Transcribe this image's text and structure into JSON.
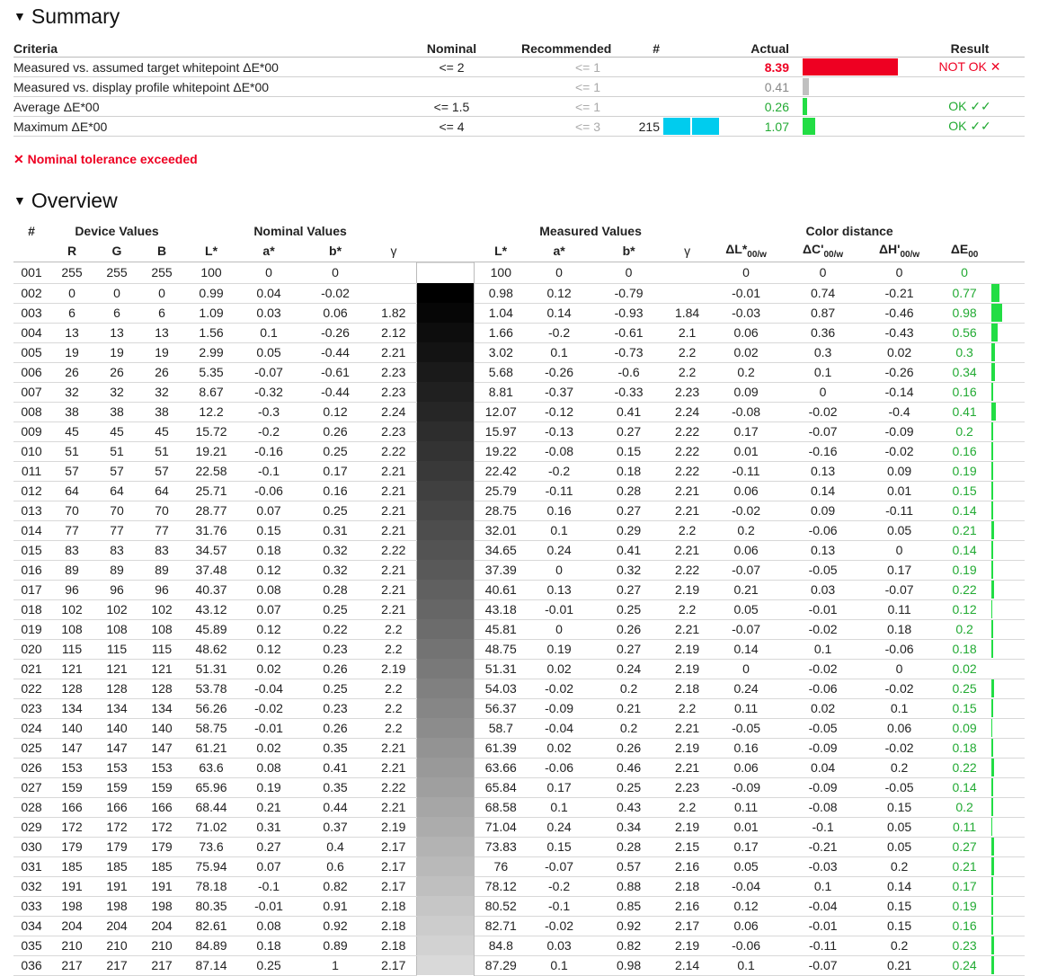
{
  "summary": {
    "title": "Summary",
    "headers": {
      "criteria": "Criteria",
      "nominal": "Nominal",
      "recommended": "Recommended",
      "count": "#",
      "actual": "Actual",
      "result": "Result"
    },
    "rows": [
      {
        "criteria": "Measured vs. assumed target whitepoint ΔE*00",
        "nominal": "<= 2",
        "recommended": "<= 1",
        "count": "",
        "actual": "8.39",
        "actual_color": "#ee0022",
        "bar_fraction": 0.94,
        "bar_color": "#ee0022",
        "result": "NOT OK ✕",
        "result_color": "#ee0022"
      },
      {
        "criteria": "Measured vs. display profile whitepoint ΔE*00",
        "nominal": "",
        "recommended": "<= 1",
        "count": "",
        "actual": "0.41",
        "actual_color": "#888888",
        "bar_fraction": 0.06,
        "bar_color": "#c0c0c0",
        "result": "",
        "result_color": "#22aa33"
      },
      {
        "criteria": "Average ΔE*00",
        "nominal": "<= 1.5",
        "recommended": "<= 1",
        "count": "",
        "actual": "0.26",
        "actual_color": "#22aa33",
        "bar_fraction": 0.04,
        "bar_color": "#22dd44",
        "result": "OK ✓✓",
        "result_color": "#22aa33"
      },
      {
        "criteria": "Maximum ΔE*00",
        "nominal": "<= 4",
        "recommended": "<= 3",
        "count": "215",
        "actual": "1.07",
        "actual_color": "#22aa33",
        "bar_fraction": 0.12,
        "bar_color": "#22dd44",
        "result": "OK ✓✓",
        "result_color": "#22aa33"
      }
    ],
    "warning": "✕ Nominal tolerance exceeded"
  },
  "overview": {
    "title": "Overview",
    "group_headers": {
      "num": "#",
      "device": "Device Values",
      "nominal": "Nominal Values",
      "measured": "Measured Values",
      "distance": "Color distance"
    },
    "col_headers": {
      "r": "R",
      "g": "G",
      "b": "B",
      "L": "L*",
      "a": "a*",
      "bstar": "b*",
      "gamma": "γ",
      "dL": "ΔL*",
      "dC": "ΔC'",
      "dH": "ΔH'",
      "dE": "ΔE",
      "sub_w": "00/w",
      "sub": "00"
    },
    "rows": [
      [
        "001",
        "255",
        "255",
        "255",
        "100",
        "0",
        "0",
        "",
        "100",
        "0",
        "0",
        "",
        "0",
        "0",
        "0",
        "0"
      ],
      [
        "002",
        "0",
        "0",
        "0",
        "0.99",
        "0.04",
        "-0.02",
        "",
        "0.98",
        "0.12",
        "-0.79",
        "",
        "-0.01",
        "0.74",
        "-0.21",
        "0.77"
      ],
      [
        "003",
        "6",
        "6",
        "6",
        "1.09",
        "0.03",
        "0.06",
        "1.82",
        "1.04",
        "0.14",
        "-0.93",
        "1.84",
        "-0.03",
        "0.87",
        "-0.46",
        "0.98"
      ],
      [
        "004",
        "13",
        "13",
        "13",
        "1.56",
        "0.1",
        "-0.26",
        "2.12",
        "1.66",
        "-0.2",
        "-0.61",
        "2.1",
        "0.06",
        "0.36",
        "-0.43",
        "0.56"
      ],
      [
        "005",
        "19",
        "19",
        "19",
        "2.99",
        "0.05",
        "-0.44",
        "2.21",
        "3.02",
        "0.1",
        "-0.73",
        "2.2",
        "0.02",
        "0.3",
        "0.02",
        "0.3"
      ],
      [
        "006",
        "26",
        "26",
        "26",
        "5.35",
        "-0.07",
        "-0.61",
        "2.23",
        "5.68",
        "-0.26",
        "-0.6",
        "2.2",
        "0.2",
        "0.1",
        "-0.26",
        "0.34"
      ],
      [
        "007",
        "32",
        "32",
        "32",
        "8.67",
        "-0.32",
        "-0.44",
        "2.23",
        "8.81",
        "-0.37",
        "-0.33",
        "2.23",
        "0.09",
        "0",
        "-0.14",
        "0.16"
      ],
      [
        "008",
        "38",
        "38",
        "38",
        "12.2",
        "-0.3",
        "0.12",
        "2.24",
        "12.07",
        "-0.12",
        "0.41",
        "2.24",
        "-0.08",
        "-0.02",
        "-0.4",
        "0.41"
      ],
      [
        "009",
        "45",
        "45",
        "45",
        "15.72",
        "-0.2",
        "0.26",
        "2.23",
        "15.97",
        "-0.13",
        "0.27",
        "2.22",
        "0.17",
        "-0.07",
        "-0.09",
        "0.2"
      ],
      [
        "010",
        "51",
        "51",
        "51",
        "19.21",
        "-0.16",
        "0.25",
        "2.22",
        "19.22",
        "-0.08",
        "0.15",
        "2.22",
        "0.01",
        "-0.16",
        "-0.02",
        "0.16"
      ],
      [
        "011",
        "57",
        "57",
        "57",
        "22.58",
        "-0.1",
        "0.17",
        "2.21",
        "22.42",
        "-0.2",
        "0.18",
        "2.22",
        "-0.11",
        "0.13",
        "0.09",
        "0.19"
      ],
      [
        "012",
        "64",
        "64",
        "64",
        "25.71",
        "-0.06",
        "0.16",
        "2.21",
        "25.79",
        "-0.11",
        "0.28",
        "2.21",
        "0.06",
        "0.14",
        "0.01",
        "0.15"
      ],
      [
        "013",
        "70",
        "70",
        "70",
        "28.77",
        "0.07",
        "0.25",
        "2.21",
        "28.75",
        "0.16",
        "0.27",
        "2.21",
        "-0.02",
        "0.09",
        "-0.11",
        "0.14"
      ],
      [
        "014",
        "77",
        "77",
        "77",
        "31.76",
        "0.15",
        "0.31",
        "2.21",
        "32.01",
        "0.1",
        "0.29",
        "2.2",
        "0.2",
        "-0.06",
        "0.05",
        "0.21"
      ],
      [
        "015",
        "83",
        "83",
        "83",
        "34.57",
        "0.18",
        "0.32",
        "2.22",
        "34.65",
        "0.24",
        "0.41",
        "2.21",
        "0.06",
        "0.13",
        "0",
        "0.14"
      ],
      [
        "016",
        "89",
        "89",
        "89",
        "37.48",
        "0.12",
        "0.32",
        "2.21",
        "37.39",
        "0",
        "0.32",
        "2.22",
        "-0.07",
        "-0.05",
        "0.17",
        "0.19"
      ],
      [
        "017",
        "96",
        "96",
        "96",
        "40.37",
        "0.08",
        "0.28",
        "2.21",
        "40.61",
        "0.13",
        "0.27",
        "2.19",
        "0.21",
        "0.03",
        "-0.07",
        "0.22"
      ],
      [
        "018",
        "102",
        "102",
        "102",
        "43.12",
        "0.07",
        "0.25",
        "2.21",
        "43.18",
        "-0.01",
        "0.25",
        "2.2",
        "0.05",
        "-0.01",
        "0.11",
        "0.12"
      ],
      [
        "019",
        "108",
        "108",
        "108",
        "45.89",
        "0.12",
        "0.22",
        "2.2",
        "45.81",
        "0",
        "0.26",
        "2.21",
        "-0.07",
        "-0.02",
        "0.18",
        "0.2"
      ],
      [
        "020",
        "115",
        "115",
        "115",
        "48.62",
        "0.12",
        "0.23",
        "2.2",
        "48.75",
        "0.19",
        "0.27",
        "2.19",
        "0.14",
        "0.1",
        "-0.06",
        "0.18"
      ],
      [
        "021",
        "121",
        "121",
        "121",
        "51.31",
        "0.02",
        "0.26",
        "2.19",
        "51.31",
        "0.02",
        "0.24",
        "2.19",
        "0",
        "-0.02",
        "0",
        "0.02"
      ],
      [
        "022",
        "128",
        "128",
        "128",
        "53.78",
        "-0.04",
        "0.25",
        "2.2",
        "54.03",
        "-0.02",
        "0.2",
        "2.18",
        "0.24",
        "-0.06",
        "-0.02",
        "0.25"
      ],
      [
        "023",
        "134",
        "134",
        "134",
        "56.26",
        "-0.02",
        "0.23",
        "2.2",
        "56.37",
        "-0.09",
        "0.21",
        "2.2",
        "0.11",
        "0.02",
        "0.1",
        "0.15"
      ],
      [
        "024",
        "140",
        "140",
        "140",
        "58.75",
        "-0.01",
        "0.26",
        "2.2",
        "58.7",
        "-0.04",
        "0.2",
        "2.21",
        "-0.05",
        "-0.05",
        "0.06",
        "0.09"
      ],
      [
        "025",
        "147",
        "147",
        "147",
        "61.21",
        "0.02",
        "0.35",
        "2.21",
        "61.39",
        "0.02",
        "0.26",
        "2.19",
        "0.16",
        "-0.09",
        "-0.02",
        "0.18"
      ],
      [
        "026",
        "153",
        "153",
        "153",
        "63.6",
        "0.08",
        "0.41",
        "2.21",
        "63.66",
        "-0.06",
        "0.46",
        "2.21",
        "0.06",
        "0.04",
        "0.2",
        "0.22"
      ],
      [
        "027",
        "159",
        "159",
        "159",
        "65.96",
        "0.19",
        "0.35",
        "2.22",
        "65.84",
        "0.17",
        "0.25",
        "2.23",
        "-0.09",
        "-0.09",
        "-0.05",
        "0.14"
      ],
      [
        "028",
        "166",
        "166",
        "166",
        "68.44",
        "0.21",
        "0.44",
        "2.21",
        "68.58",
        "0.1",
        "0.43",
        "2.2",
        "0.11",
        "-0.08",
        "0.15",
        "0.2"
      ],
      [
        "029",
        "172",
        "172",
        "172",
        "71.02",
        "0.31",
        "0.37",
        "2.19",
        "71.04",
        "0.24",
        "0.34",
        "2.19",
        "0.01",
        "-0.1",
        "0.05",
        "0.11"
      ],
      [
        "030",
        "179",
        "179",
        "179",
        "73.6",
        "0.27",
        "0.4",
        "2.17",
        "73.83",
        "0.15",
        "0.28",
        "2.15",
        "0.17",
        "-0.21",
        "0.05",
        "0.27"
      ],
      [
        "031",
        "185",
        "185",
        "185",
        "75.94",
        "0.07",
        "0.6",
        "2.17",
        "76",
        "-0.07",
        "0.57",
        "2.16",
        "0.05",
        "-0.03",
        "0.2",
        "0.21"
      ],
      [
        "032",
        "191",
        "191",
        "191",
        "78.18",
        "-0.1",
        "0.82",
        "2.17",
        "78.12",
        "-0.2",
        "0.88",
        "2.18",
        "-0.04",
        "0.1",
        "0.14",
        "0.17"
      ],
      [
        "033",
        "198",
        "198",
        "198",
        "80.35",
        "-0.01",
        "0.91",
        "2.18",
        "80.52",
        "-0.1",
        "0.85",
        "2.16",
        "0.12",
        "-0.04",
        "0.15",
        "0.19"
      ],
      [
        "034",
        "204",
        "204",
        "204",
        "82.61",
        "0.08",
        "0.92",
        "2.18",
        "82.71",
        "-0.02",
        "0.92",
        "2.17",
        "0.06",
        "-0.01",
        "0.15",
        "0.16"
      ],
      [
        "035",
        "210",
        "210",
        "210",
        "84.89",
        "0.18",
        "0.89",
        "2.18",
        "84.8",
        "0.03",
        "0.82",
        "2.19",
        "-0.06",
        "-0.11",
        "0.2",
        "0.23"
      ],
      [
        "036",
        "217",
        "217",
        "217",
        "87.14",
        "0.25",
        "1",
        "2.17",
        "87.29",
        "0.1",
        "0.98",
        "2.14",
        "0.1",
        "-0.07",
        "0.21",
        "0.24"
      ]
    ]
  }
}
